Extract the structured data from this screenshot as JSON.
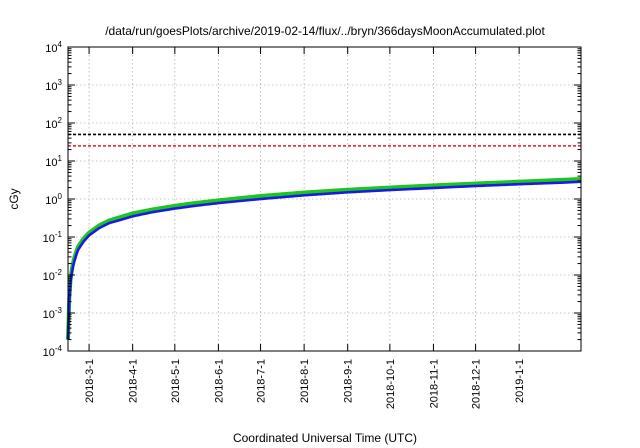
{
  "chart_data": {
    "type": "line",
    "title": "/data/run/goesPlots/archive/2019-02-14/flux/../bryn/366daysMoonAccumulated.plot",
    "xlabel": "Coordinated Universal Time (UTC)",
    "ylabel": "cGy",
    "yscale": "log",
    "ylim": [
      "2018-02-14",
      10000
    ],
    "ylim_values": [
      0.0001,
      10000
    ],
    "xlim": [
      "2018-02-14",
      "2019-02-14"
    ],
    "grid": true,
    "y_ticks": [
      {
        "value": 0.0001,
        "base": "10",
        "exp": "-4"
      },
      {
        "value": 0.001,
        "base": "10",
        "exp": "-3"
      },
      {
        "value": 0.01,
        "base": "10",
        "exp": "-2"
      },
      {
        "value": 0.1,
        "base": "10",
        "exp": "-1"
      },
      {
        "value": 1,
        "base": "10",
        "exp": "0"
      },
      {
        "value": 10,
        "base": "10",
        "exp": "1"
      },
      {
        "value": 100,
        "base": "10",
        "exp": "2"
      },
      {
        "value": 1000,
        "base": "10",
        "exp": "3"
      },
      {
        "value": 10000,
        "base": "10",
        "exp": "4"
      }
    ],
    "x_ticks": [
      "2018-3-1",
      "2018-4-1",
      "2018-5-1",
      "2018-6-1",
      "2018-7-1",
      "2018-8-1",
      "2018-9-1",
      "2018-10-1",
      "2018-11-1",
      "2018-12-1",
      "2019-1-1"
    ],
    "reference_lines": [
      {
        "value": 50,
        "color": "#000000",
        "style": "dashed"
      },
      {
        "value": 25,
        "color": "#e8171b",
        "style": "dashed"
      }
    ],
    "series": [
      {
        "color": "#1ec51e",
        "x": [
          "2018-02-14",
          "2018-02-15",
          "2018-02-16",
          "2018-02-18",
          "2018-02-21",
          "2018-02-25",
          "2018-03-01",
          "2018-03-08",
          "2018-03-15",
          "2018-04-01",
          "2018-04-15",
          "2018-05-01",
          "2018-05-15",
          "2018-06-01",
          "2018-07-01",
          "2018-08-01",
          "2018-09-01",
          "2018-10-01",
          "2018-11-01",
          "2018-12-01",
          "2019-01-01",
          "2019-02-01",
          "2019-02-14"
        ],
        "y": [
          0.0002,
          0.003,
          0.01,
          0.025,
          0.055,
          0.09,
          0.13,
          0.2,
          0.27,
          0.42,
          0.53,
          0.66,
          0.78,
          0.92,
          1.2,
          1.48,
          1.75,
          2.0,
          2.28,
          2.55,
          2.85,
          3.2,
          3.35
        ]
      },
      {
        "color": "#1a1ae6",
        "x": [
          "2018-02-14",
          "2018-02-15",
          "2018-02-16",
          "2018-02-18",
          "2018-02-21",
          "2018-02-25",
          "2018-03-01",
          "2018-03-08",
          "2018-03-15",
          "2018-04-01",
          "2018-04-15",
          "2018-05-01",
          "2018-05-15",
          "2018-06-01",
          "2018-07-01",
          "2018-08-01",
          "2018-09-01",
          "2018-10-01",
          "2018-11-01",
          "2018-12-01",
          "2019-01-01",
          "2019-02-01",
          "2019-02-14"
        ],
        "y": [
          0.0002,
          0.0025,
          0.008,
          0.02,
          0.045,
          0.075,
          0.11,
          0.17,
          0.23,
          0.35,
          0.45,
          0.56,
          0.66,
          0.78,
          1.0,
          1.25,
          1.5,
          1.72,
          1.95,
          2.2,
          2.45,
          2.7,
          2.85
        ]
      }
    ]
  }
}
